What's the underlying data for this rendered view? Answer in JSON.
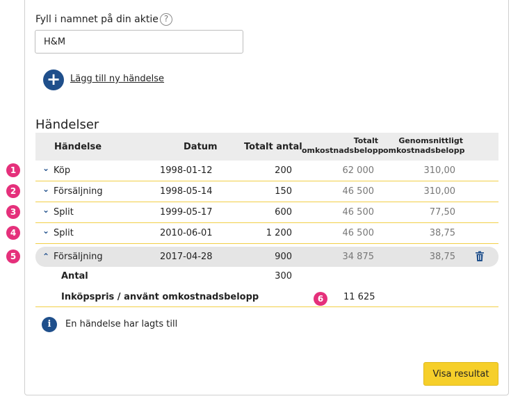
{
  "form": {
    "stock_label": "Fyll i namnet på din aktie",
    "help_glyph": "?",
    "stock_value": "H&M"
  },
  "add_event": {
    "icon_glyph": "+",
    "label": "Lägg till ny händelse"
  },
  "events_section": {
    "title": "Händelser",
    "columns": {
      "event": "Händelse",
      "date": "Datum",
      "total_qty": "Totalt antal",
      "total_cost_line1": "Totalt",
      "total_cost_line2": "omkostnadsbelopp",
      "avg_cost_line1": "Genomsnittligt",
      "avg_cost_line2": "omkostnadsbelopp"
    },
    "rows": [
      {
        "marker": "1",
        "chevron": "⌄",
        "event": "Köp",
        "date": "1998-01-12",
        "qty": "200",
        "total_cost": "62 000",
        "avg_cost": "310,00"
      },
      {
        "marker": "2",
        "chevron": "⌄",
        "event": "Försäljning",
        "date": "1998-05-14",
        "qty": "150",
        "total_cost": "46 500",
        "avg_cost": "310,00"
      },
      {
        "marker": "3",
        "chevron": "⌄",
        "event": "Split",
        "date": "1999-05-17",
        "qty": "600",
        "total_cost": "46 500",
        "avg_cost": "77,50"
      },
      {
        "marker": "4",
        "chevron": "⌄",
        "event": "Split",
        "date": "2010-06-01",
        "qty": "1 200",
        "total_cost": "46 500",
        "avg_cost": "38,75"
      },
      {
        "marker": "5",
        "chevron": "⌃",
        "event": "Försäljning",
        "date": "2017-04-28",
        "qty": "900",
        "total_cost": "34 875",
        "avg_cost": "38,75"
      }
    ],
    "expanded_details": {
      "quantity_label": "Antal",
      "quantity_value": "300",
      "cost_label": "Inköpspris / använt omkostnadsbelopp",
      "cost_marker": "6",
      "cost_value": "11 625"
    }
  },
  "info": {
    "icon_glyph": "i",
    "message": "En händelse har lagts till"
  },
  "actions": {
    "show_result": "Visa resultat"
  },
  "colors": {
    "accent_blue": "#1f4f8b",
    "marker_pink": "#e5307b",
    "divider_yellow": "#f2cf46",
    "button_yellow": "#f6cf2a"
  }
}
